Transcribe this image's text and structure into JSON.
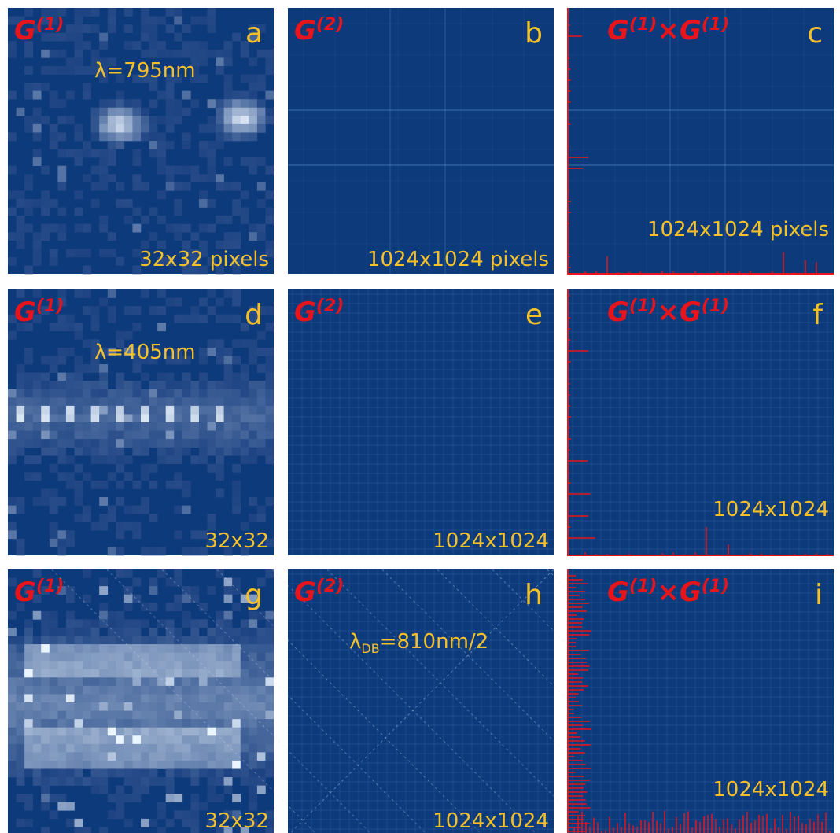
{
  "panels": [
    {
      "letter": "a",
      "title": [
        "G",
        "(1)"
      ],
      "annotation": [
        "λ=795nm"
      ],
      "size": "32x32 pixels"
    },
    {
      "letter": "b",
      "title": [
        "G",
        "(2)"
      ],
      "size": "1024x1024 pixels"
    },
    {
      "letter": "c",
      "title": [
        "G",
        "(1)",
        "×G",
        "(1)"
      ],
      "size": "1024x1024 pixels"
    },
    {
      "letter": "d",
      "title": [
        "G",
        "(1)"
      ],
      "annotation": [
        "λ=405nm"
      ],
      "size": "32x32"
    },
    {
      "letter": "e",
      "title": [
        "G",
        "(2)"
      ],
      "size": "1024x1024"
    },
    {
      "letter": "f",
      "title": [
        "G",
        "(1)",
        "×G",
        "(1)"
      ],
      "size": "1024x1024"
    },
    {
      "letter": "g",
      "title": [
        "G",
        "(1)"
      ],
      "size": "32x32"
    },
    {
      "letter": "h",
      "title": [
        "G",
        "(2)"
      ],
      "annotation": [
        "λ",
        "DB",
        "=810nm/2"
      ],
      "size": "1024x1024"
    },
    {
      "letter": "i",
      "title": [
        "G",
        "(1)",
        "×G",
        "(1)"
      ],
      "size": "1024x1024"
    }
  ]
}
